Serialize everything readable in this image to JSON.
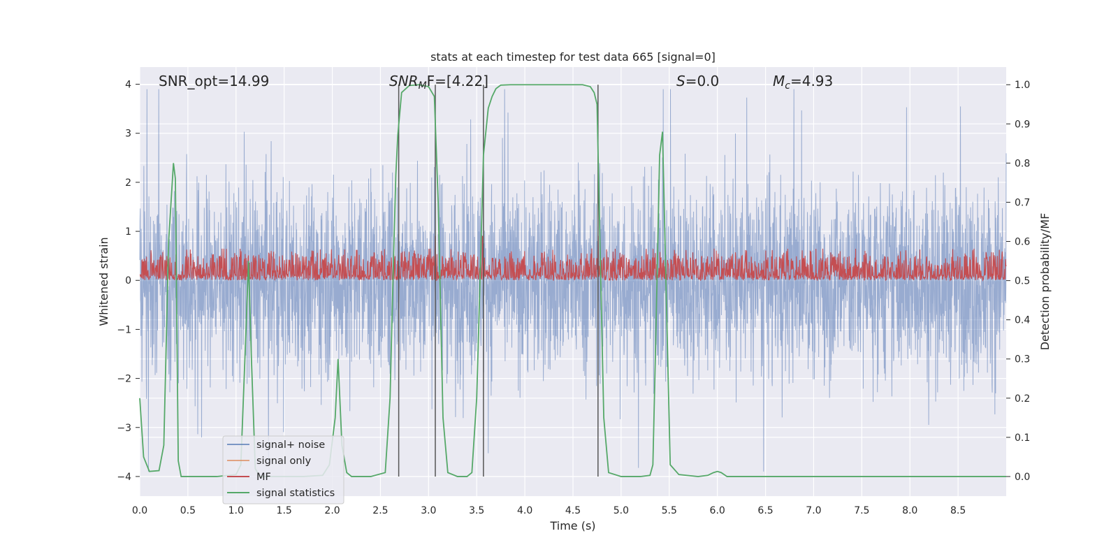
{
  "chart_data": {
    "type": "line",
    "title": "stats at each timestep for test data 665 [signal=0]",
    "xlabel": "Time (s)",
    "ylabel": "Whitened strain",
    "ylabel_right": "Detection probability/MF",
    "xlim": [
      0,
      9
    ],
    "ylim": [
      -4.4,
      4.35
    ],
    "ylim_right": [
      -0.05,
      1.045
    ],
    "x_ticks": [
      "0.0",
      "0.5",
      "1.0",
      "1.5",
      "2.0",
      "2.5",
      "3.0",
      "3.5",
      "4.0",
      "4.5",
      "5.0",
      "5.5",
      "6.0",
      "6.5",
      "7.0",
      "7.5",
      "8.0",
      "8.5"
    ],
    "y_ticks": [
      "4",
      "3",
      "2",
      "1",
      "0",
      "−1",
      "−2",
      "−3",
      "−4"
    ],
    "y_ticks_right": [
      "1.0",
      "0.9",
      "0.8",
      "0.7",
      "0.6",
      "0.5",
      "0.4",
      "0.3",
      "0.2",
      "0.1",
      "0.0"
    ],
    "grid": true,
    "legend_position": "bottom-left",
    "annotations": [
      {
        "id": "snr_opt",
        "text": "SNR_opt=14.99"
      },
      {
        "id": "snr_mf",
        "base": "SNR",
        "sub": "M",
        "tail": "F=[4.22]"
      },
      {
        "id": "s",
        "base": "S",
        "tail": "=0.0"
      },
      {
        "id": "mc",
        "base": "M",
        "sub": "c",
        "tail": "=4.93"
      }
    ],
    "series": [
      {
        "name": "signal+ noise",
        "color": "#4c72b0",
        "axis": "left",
        "description": "whitened strain noise, amplitude mostly within ±2.5, peaks to about ±3.8"
      },
      {
        "name": "signal only",
        "color": "#dd8452",
        "axis": "left",
        "values_note": "zero (signal=0)"
      },
      {
        "name": "MF",
        "color": "#c44e52",
        "axis": "left",
        "baseline": 0.0,
        "typical_max": 0.65,
        "peak": 1.0
      },
      {
        "name": "signal statistics",
        "color": "#55a868",
        "axis": "right",
        "x": [
          0.0,
          0.04,
          0.1,
          0.2,
          0.25,
          0.3,
          0.35,
          0.37,
          0.4,
          0.43,
          0.5,
          0.6,
          0.8,
          1.0,
          1.05,
          1.1,
          1.13,
          1.16,
          1.2,
          1.25,
          1.3,
          1.5,
          1.7,
          1.9,
          1.97,
          2.03,
          2.06,
          2.1,
          2.15,
          2.2,
          2.3,
          2.4,
          2.55,
          2.6,
          2.63,
          2.66,
          2.68,
          2.72,
          2.8,
          2.9,
          3.0,
          3.06,
          3.1,
          3.15,
          3.2,
          3.3,
          3.4,
          3.45,
          3.5,
          3.53,
          3.57,
          3.62,
          3.66,
          3.7,
          3.75,
          3.85,
          4.0,
          4.3,
          4.6,
          4.68,
          4.72,
          4.75,
          4.78,
          4.82,
          4.87,
          5.0,
          5.2,
          5.3,
          5.33,
          5.36,
          5.4,
          5.43,
          5.47,
          5.51,
          5.6,
          5.8,
          5.9,
          5.96,
          6.0,
          6.04,
          6.1,
          6.5,
          7.0,
          8.0,
          9.0
        ],
        "y": [
          0.2,
          0.05,
          0.013,
          0.015,
          0.08,
          0.6,
          0.8,
          0.76,
          0.04,
          0.0,
          0.0,
          0.0,
          0.0,
          0.005,
          0.03,
          0.35,
          0.55,
          0.3,
          0.02,
          0.0,
          0.0,
          0.0,
          0.0,
          0.003,
          0.03,
          0.15,
          0.3,
          0.08,
          0.01,
          0.0,
          0.0,
          0.0,
          0.01,
          0.2,
          0.5,
          0.77,
          0.87,
          0.98,
          0.998,
          1.0,
          0.995,
          0.97,
          0.7,
          0.15,
          0.01,
          0.0,
          0.0,
          0.01,
          0.2,
          0.46,
          0.82,
          0.94,
          0.97,
          0.99,
          0.999,
          1.0,
          1.0,
          1.0,
          1.0,
          0.995,
          0.98,
          0.95,
          0.6,
          0.15,
          0.01,
          0.0,
          0.0,
          0.003,
          0.03,
          0.35,
          0.82,
          0.88,
          0.45,
          0.03,
          0.005,
          0.0,
          0.003,
          0.01,
          0.013,
          0.01,
          0.0,
          0.0,
          0.0,
          0.0,
          0.0
        ]
      }
    ],
    "vertical_lines_x": [
      2.69,
      3.07,
      3.57,
      4.76
    ],
    "mf_spike_x": [
      3.07,
      3.56,
      4.76
    ]
  }
}
